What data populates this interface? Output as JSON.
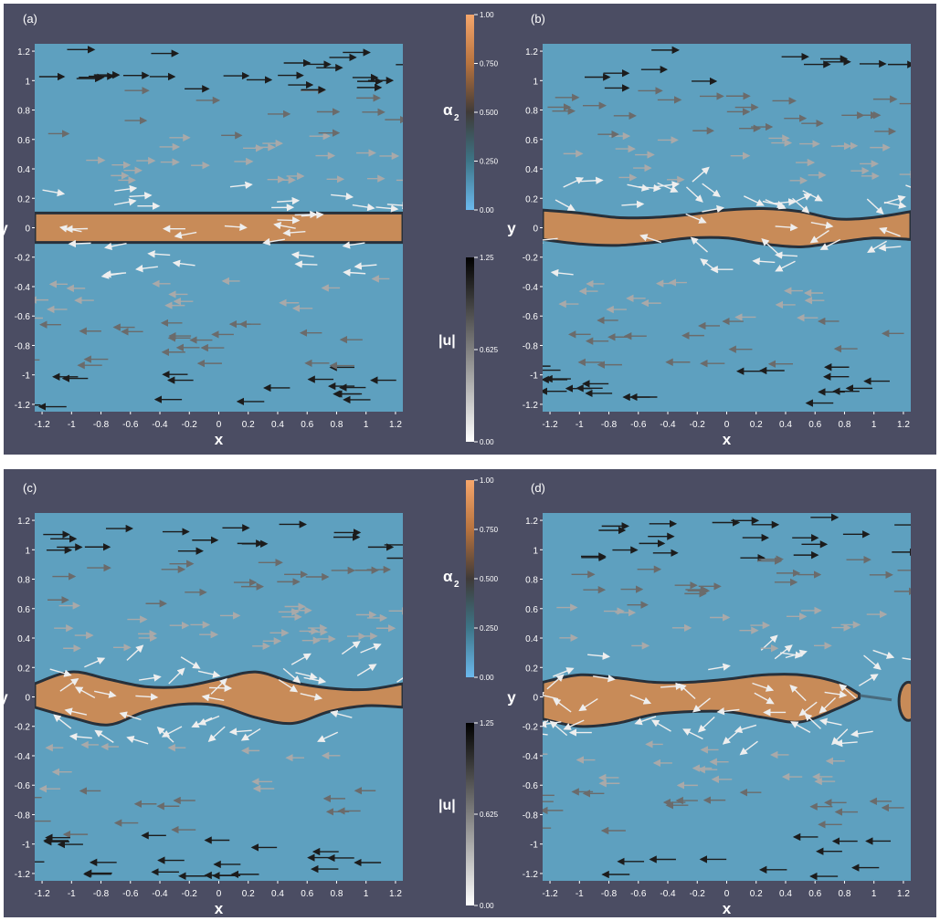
{
  "chart_data": [
    {
      "type": "heatmap",
      "panel_label": "(a)",
      "xlabel": "x",
      "ylabel": "y",
      "xlim": [
        -1.25,
        1.25
      ],
      "ylim": [
        -1.25,
        1.25
      ],
      "x_ticks": [
        -1.2,
        -1,
        -0.8,
        -0.6,
        -0.4,
        -0.2,
        0,
        0.2,
        0.4,
        0.6,
        0.8,
        1,
        1.2
      ],
      "y_ticks": [
        1.2,
        1,
        0.8,
        0.6,
        0.4,
        0.2,
        0,
        -0.2,
        -0.4,
        -0.6,
        -0.8,
        -1,
        -1.2
      ],
      "interface_x": [
        -1.25,
        -0.625,
        0,
        0.625,
        1.25
      ],
      "interface_upper": [
        0.1,
        0.1,
        0.1,
        0.1,
        0.1
      ],
      "interface_lower": [
        -0.1,
        -0.1,
        -0.1,
        -0.1,
        -0.1
      ]
    },
    {
      "type": "heatmap",
      "panel_label": "(b)",
      "xlabel": "x",
      "ylabel": "y",
      "xlim": [
        -1.25,
        1.25
      ],
      "ylim": [
        -1.25,
        1.25
      ],
      "x_ticks": [
        -1.2,
        -1,
        -0.8,
        -0.6,
        -0.4,
        -0.2,
        0,
        0.2,
        0.4,
        0.6,
        0.8,
        1,
        1.2
      ],
      "y_ticks": [
        1.2,
        1,
        0.8,
        0.6,
        0.4,
        0.2,
        0,
        -0.2,
        -0.4,
        -0.6,
        -0.8,
        -1,
        -1.2
      ],
      "interface_x": [
        -1.25,
        -1.0,
        -0.75,
        -0.5,
        -0.25,
        0,
        0.25,
        0.5,
        0.75,
        1.0,
        1.25
      ],
      "interface_upper": [
        0.12,
        0.1,
        0.07,
        0.07,
        0.09,
        0.12,
        0.13,
        0.11,
        0.06,
        0.07,
        0.11
      ],
      "interface_lower": [
        -0.08,
        -0.11,
        -0.12,
        -0.1,
        -0.07,
        -0.07,
        -0.11,
        -0.13,
        -0.1,
        -0.07,
        -0.08
      ]
    },
    {
      "type": "heatmap",
      "panel_label": "(c)",
      "xlabel": "x",
      "ylabel": "y",
      "xlim": [
        -1.25,
        1.25
      ],
      "ylim": [
        -1.25,
        1.25
      ],
      "x_ticks": [
        -1.2,
        -1,
        -0.8,
        -0.6,
        -0.4,
        -0.2,
        0,
        0.2,
        0.4,
        0.6,
        0.8,
        1,
        1.2
      ],
      "y_ticks": [
        1.2,
        1,
        0.8,
        0.6,
        0.4,
        0.2,
        0,
        -0.2,
        -0.4,
        -0.6,
        -0.8,
        -1,
        -1.2
      ],
      "interface_x": [
        -1.25,
        -1.0,
        -0.75,
        -0.5,
        -0.25,
        0,
        0.25,
        0.5,
        0.75,
        1.0,
        1.25
      ],
      "interface_upper": [
        0.09,
        0.17,
        0.12,
        0.07,
        0.07,
        0.12,
        0.17,
        0.1,
        0.06,
        0.05,
        0.09
      ],
      "interface_lower": [
        -0.07,
        -0.14,
        -0.19,
        -0.1,
        -0.05,
        -0.06,
        -0.14,
        -0.18,
        -0.1,
        -0.06,
        -0.07
      ]
    },
    {
      "type": "heatmap",
      "panel_label": "(d)",
      "xlabel": "x",
      "ylabel": "y",
      "xlim": [
        -1.25,
        1.25
      ],
      "ylim": [
        -1.25,
        1.25
      ],
      "x_ticks": [
        -1.2,
        -1,
        -0.8,
        -0.6,
        -0.4,
        -0.2,
        0,
        0.2,
        0.4,
        0.6,
        0.8,
        1,
        1.2
      ],
      "y_ticks": [
        1.2,
        1,
        0.8,
        0.6,
        0.4,
        0.2,
        0,
        -0.2,
        -0.4,
        -0.6,
        -0.8,
        -1,
        -1.2
      ],
      "interface_x": [
        -1.25,
        -1.0,
        -0.75,
        -0.5,
        -0.25,
        0,
        0.25,
        0.5,
        0.75,
        0.9
      ],
      "interface_upper": [
        0.1,
        0.15,
        0.13,
        0.1,
        0.1,
        0.12,
        0.15,
        0.15,
        0.1,
        0.02
      ],
      "interface_lower": [
        -0.15,
        -0.2,
        -0.18,
        -0.12,
        -0.1,
        -0.1,
        -0.14,
        -0.17,
        -0.08,
        -0.01
      ],
      "blob_right": {
        "x_min": 1.17,
        "x_max": 1.25,
        "y_min": -0.16,
        "y_max": 0.1
      }
    }
  ],
  "colorbars": [
    {
      "name": "α",
      "subscript": "2",
      "ticks": [
        "1.00",
        "0.750",
        "0.500",
        "0.250",
        "0.00"
      ],
      "colors": [
        "#f6a66b",
        "#b7733f",
        "#3f3a38",
        "#3d7587",
        "#6bb9ee"
      ]
    },
    {
      "name": "|u|",
      "ticks": [
        "1.25",
        "0.625",
        "0.00"
      ],
      "colors": [
        "#000000",
        "#ffffff"
      ]
    }
  ],
  "colors": {
    "background": "#4b4d63",
    "phase1": "#5ea0bf",
    "phase2": "#c88b58",
    "interface": "#27303a"
  }
}
